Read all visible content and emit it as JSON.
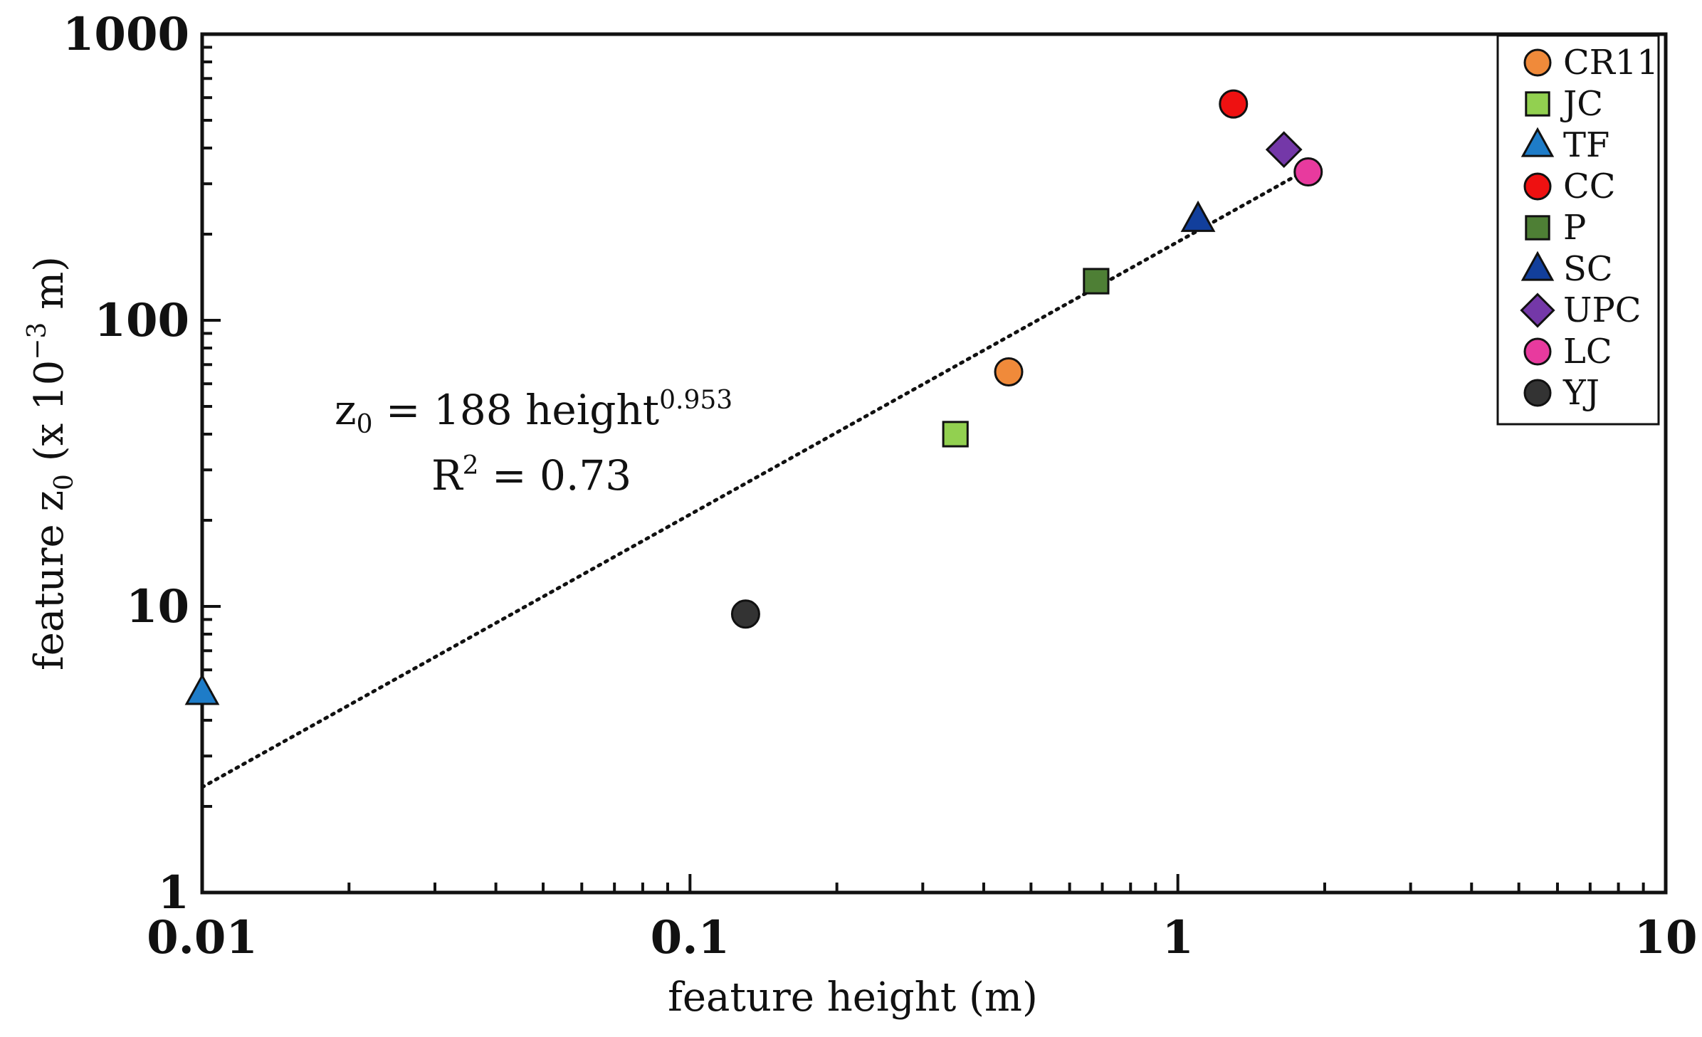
{
  "chart_data": {
    "type": "scatter",
    "title": "",
    "xlabel": "feature height (m)",
    "ylabel_main": "feature z",
    "ylabel_sub": "0",
    "ylabel_units_pre": " (x 10",
    "ylabel_units_exp": "−3",
    "ylabel_units_post": " m)",
    "xscale": "log",
    "yscale": "log",
    "xlim": [
      0.01,
      10
    ],
    "ylim": [
      1,
      1000
    ],
    "x_ticks": [
      {
        "value": 0.01,
        "label": "0.01"
      },
      {
        "value": 0.1,
        "label": "0.1"
      },
      {
        "value": 1,
        "label": "1"
      },
      {
        "value": 10,
        "label": "10"
      }
    ],
    "y_ticks": [
      {
        "value": 1,
        "label": "1"
      },
      {
        "value": 10,
        "label": "10"
      },
      {
        "value": 100,
        "label": "100"
      },
      {
        "value": 1000,
        "label": "1000"
      }
    ],
    "grid": false,
    "legend_position": "top-right",
    "series": [
      {
        "name": "CR11",
        "marker": "circle",
        "color": "#F08A3A",
        "x": 0.45,
        "y": 66
      },
      {
        "name": "JC",
        "marker": "square",
        "color": "#92D050",
        "x": 0.35,
        "y": 40
      },
      {
        "name": "TF",
        "marker": "triangle",
        "color": "#1E7CC8",
        "x": 0.01,
        "y": 5
      },
      {
        "name": "CC",
        "marker": "circle",
        "color": "#EE1111",
        "x": 1.3,
        "y": 570
      },
      {
        "name": "P",
        "marker": "square",
        "color": "#4E7F35",
        "x": 0.68,
        "y": 137
      },
      {
        "name": "SC",
        "marker": "triangle",
        "color": "#123F9C",
        "x": 1.1,
        "y": 225
      },
      {
        "name": "UPC",
        "marker": "diamond",
        "color": "#7438A8",
        "x": 1.65,
        "y": 395
      },
      {
        "name": "LC",
        "marker": "circle",
        "color": "#E83A9E",
        "x": 1.85,
        "y": 330
      },
      {
        "name": "YJ",
        "marker": "circle",
        "color": "#333333",
        "x": 0.13,
        "y": 9.4
      }
    ],
    "fit": {
      "coefficient": 188,
      "exponent": 0.953,
      "x_range": [
        0.01,
        1.85
      ],
      "style": "dotted"
    },
    "annotation": {
      "eq_z": "z",
      "eq_sub": "0",
      "eq_mid": " = 188 height",
      "eq_exp": "0.953",
      "r2_pre": "R",
      "r2_exp": "2",
      "r2_post": " = 0.73"
    }
  }
}
